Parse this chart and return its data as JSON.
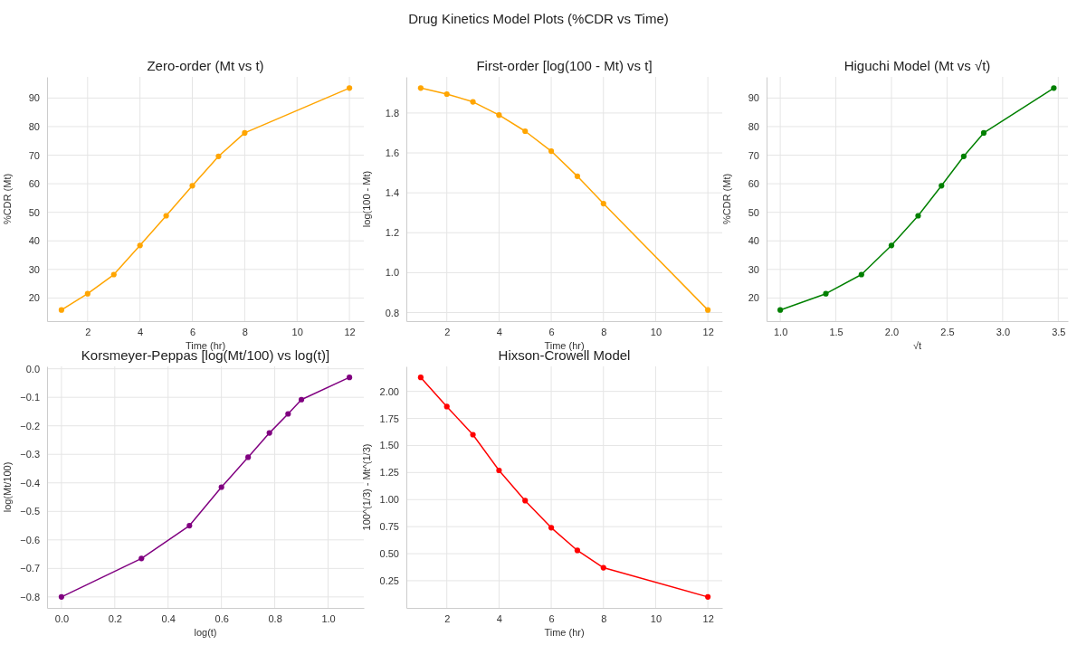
{
  "chart_data": [
    {
      "type": "line",
      "title": "Zero-order (Mt vs t)",
      "xlabel": "Time (hr)",
      "ylabel": "%CDR (Mt)",
      "annotations": [
        "Drug Kinetics Model Plots (%CDR vs Time)"
      ],
      "x": [
        1,
        2,
        3,
        4,
        5,
        6,
        7,
        8,
        12
      ],
      "series": [
        {
          "color": "#ffa500",
          "values": [
            15.8,
            21.5,
            28.2,
            38.4,
            48.8,
            59.3,
            69.6,
            77.8,
            93.5
          ]
        }
      ],
      "xlim": [
        0.45,
        12.55
      ],
      "ylim": [
        11.9,
        97.4
      ],
      "xticks": [
        2,
        4,
        6,
        8,
        10,
        12
      ],
      "yticks": [
        20,
        30,
        40,
        50,
        60,
        70,
        80,
        90
      ],
      "grid": true,
      "marker": "circle"
    },
    {
      "type": "line",
      "title": "First-order [log(100 - Mt) vs t]",
      "xlabel": "Time (hr)",
      "ylabel": "log(100 - Mt)",
      "x": [
        1,
        2,
        3,
        4,
        5,
        6,
        7,
        8,
        12
      ],
      "series": [
        {
          "color": "#ffa500",
          "values": [
            1.925,
            1.895,
            1.856,
            1.79,
            1.709,
            1.609,
            1.483,
            1.346,
            0.813
          ]
        }
      ],
      "xlim": [
        0.45,
        12.55
      ],
      "ylim": [
        0.757,
        1.981
      ],
      "xticks": [
        2,
        4,
        6,
        8,
        10,
        12
      ],
      "yticks": [
        {
          "value": 0.8,
          "label": "0.8"
        },
        {
          "value": 1,
          "label": "1.0"
        },
        {
          "value": 1.2,
          "label": "1.2"
        },
        {
          "value": 1.4,
          "label": "1.4"
        },
        {
          "value": 1.6,
          "label": "1.6"
        },
        {
          "value": 1.8,
          "label": "1.8"
        }
      ],
      "grid": true,
      "marker": "circle"
    },
    {
      "type": "line",
      "title": "Higuchi Model (Mt vs √t)",
      "xlabel": "√t",
      "ylabel": "%CDR (Mt)",
      "x": [
        1,
        1.41,
        1.73,
        2,
        2.24,
        2.45,
        2.65,
        2.83,
        3.46
      ],
      "series": [
        {
          "color": "#008000",
          "values": [
            15.8,
            21.5,
            28.2,
            38.4,
            48.8,
            59.3,
            69.6,
            77.8,
            93.5
          ]
        }
      ],
      "xlim": [
        0.877,
        3.587
      ],
      "ylim": [
        11.9,
        97.4
      ],
      "xticks": [
        {
          "value": 1,
          "label": "1.0"
        },
        1.5,
        {
          "value": 2,
          "label": "2.0"
        },
        2.5,
        {
          "value": 3,
          "label": "3.0"
        },
        3.5
      ],
      "yticks": [
        20,
        30,
        40,
        50,
        60,
        70,
        80,
        90
      ],
      "grid": true,
      "marker": "circle"
    },
    {
      "type": "line",
      "title": "Korsmeyer-Peppas [log(Mt/100) vs log(t)]",
      "xlabel": "log(t)",
      "ylabel": "log(Mt/100)",
      "x": [
        0,
        0.3,
        0.48,
        0.6,
        0.7,
        0.78,
        0.85,
        0.9,
        1.08
      ],
      "series": [
        {
          "color": "#800080",
          "values": [
            -0.8,
            -0.665,
            -0.55,
            -0.415,
            -0.31,
            -0.225,
            -0.158,
            -0.108,
            -0.03
          ]
        }
      ],
      "xlim": [
        -0.054,
        1.134
      ],
      "ylim": [
        -0.8385,
        0.0085
      ],
      "xticks": [
        {
          "value": 0,
          "label": "0.0"
        },
        0.2,
        0.4,
        0.6,
        0.8,
        {
          "value": 1,
          "label": "1.0"
        }
      ],
      "yticks": [
        {
          "value": -0.8,
          "label": "−0.8"
        },
        {
          "value": -0.7,
          "label": "−0.7"
        },
        {
          "value": -0.6,
          "label": "−0.6"
        },
        {
          "value": -0.5,
          "label": "−0.5"
        },
        {
          "value": -0.4,
          "label": "−0.4"
        },
        {
          "value": -0.3,
          "label": "−0.3"
        },
        {
          "value": -0.2,
          "label": "−0.2"
        },
        {
          "value": -0.1,
          "label": "−0.1"
        },
        {
          "value": 0,
          "label": "0.0"
        }
      ],
      "grid": true,
      "marker": "circle"
    },
    {
      "type": "line",
      "title": "Hixson-Crowell Model",
      "xlabel": "Time (hr)",
      "ylabel": "100^(1/3) - Mt^(1/3)",
      "x": [
        1,
        2,
        3,
        4,
        5,
        6,
        7,
        8,
        12
      ],
      "series": [
        {
          "color": "#ff0000",
          "values": [
            2.13,
            1.86,
            1.6,
            1.27,
            0.99,
            0.74,
            0.53,
            0.37,
            0.1
          ]
        }
      ],
      "xlim": [
        0.45,
        12.55
      ],
      "ylim": [
        -0.0015,
        2.2315
      ],
      "xticks": [
        2,
        4,
        6,
        8,
        10,
        12
      ],
      "yticks": [
        0.25,
        {
          "value": 0.5,
          "label": "0.50"
        },
        0.75,
        {
          "value": 1,
          "label": "1.00"
        },
        1.25,
        {
          "value": 1.5,
          "label": "1.50"
        },
        1.75,
        {
          "value": 2,
          "label": "2.00"
        }
      ],
      "grid": true,
      "marker": "circle"
    }
  ]
}
